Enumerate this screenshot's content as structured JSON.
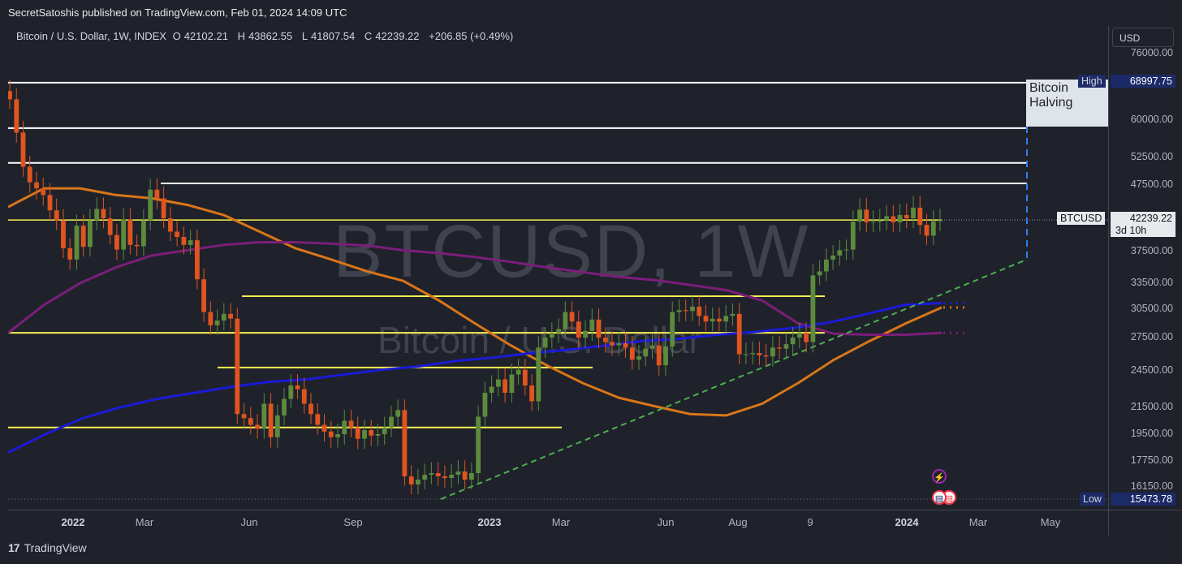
{
  "publisher_line": "SecretSatoshis published on TradingView.com, Feb 01, 2024 14:09 UTC",
  "legend": {
    "symbol": "Bitcoin / U.S. Dollar, 1W, INDEX",
    "o_label": "O",
    "o": "42102.21",
    "h_label": "H",
    "h": "43862.55",
    "l_label": "L",
    "l": "41807.54",
    "c_label": "C",
    "c": "42239.22",
    "change": "+206.85 (+0.49%)"
  },
  "currency_button": "USD",
  "watermark": {
    "ticker": "BTCUSD, 1W",
    "name": "Bitcoin / U.S. Dollar"
  },
  "annotation": {
    "halving": "Bitcoin Halving"
  },
  "price_tags": {
    "high_label": "High",
    "high_value": "68997.75",
    "last_symbol": "BTCUSD",
    "last_value": "42239.22",
    "countdown": "3d 10h",
    "low_label": "Low",
    "low_value": "15473.78"
  },
  "footer": {
    "brand": "TradingView",
    "logo": "17"
  },
  "colors": {
    "background": "#1f222b",
    "up": "#5d8a3c",
    "down": "#e0541f",
    "ma_orange": "#d9761a",
    "ma_purple": "#7b1e7a",
    "ma_blue": "#1a1ad6",
    "trend_green": "#4caf50",
    "level_yellow": "#f7f052",
    "level_white": "#ffffff",
    "halving_line": "#2f7ff0"
  },
  "chart_data": {
    "type": "candlestick",
    "timeframe": "1W",
    "y_axis_ticks": [
      "76000.00",
      "60000.00",
      "52500.00",
      "47500.00",
      "37500.00",
      "33500.00",
      "30500.00",
      "27500.00",
      "24500.00",
      "21500.00",
      "19500.00",
      "17750.00",
      "16150.00"
    ],
    "x_axis_ticks": [
      {
        "label": "2022",
        "bold": true
      },
      {
        "label": "Mar",
        "bold": false
      },
      {
        "label": "Jun",
        "bold": false
      },
      {
        "label": "Sep",
        "bold": false
      },
      {
        "label": "2023",
        "bold": true
      },
      {
        "label": "Mar",
        "bold": false
      },
      {
        "label": "Jun",
        "bold": false
      },
      {
        "label": "Aug",
        "bold": false
      },
      {
        "label": "9",
        "bold": false
      },
      {
        "label": "2024",
        "bold": true
      },
      {
        "label": "Mar",
        "bold": false
      },
      {
        "label": "May",
        "bold": false
      }
    ],
    "closes": [
      65000,
      57500,
      50800,
      48000,
      47000,
      46000,
      43700,
      42200,
      38000,
      36500,
      41400,
      38200,
      42200,
      43900,
      42500,
      40000,
      37800,
      42300,
      38500,
      38300,
      42200,
      46800,
      45500,
      42500,
      40500,
      39700,
      38500,
      39200,
      34000,
      30200,
      28800,
      29300,
      30000,
      29500,
      21000,
      20700,
      20200,
      19900,
      21800,
      19300,
      20900,
      22200,
      23300,
      23000,
      21800,
      21000,
      20200,
      19700,
      19300,
      19500,
      20500,
      20000,
      19200,
      19800,
      19400,
      19500,
      20000,
      20800,
      21300,
      16800,
      16300,
      16600,
      16900,
      17000,
      16800,
      16700,
      16900,
      17100,
      16600,
      17000,
      20800,
      22700,
      23200,
      23800,
      22700,
      24200,
      24600,
      23300,
      22000,
      26600,
      27500,
      28000,
      28400,
      30200,
      29200,
      27500,
      28200,
      29400,
      27500,
      27100,
      26800,
      27000,
      26600,
      25500,
      25800,
      26500,
      26800,
      25000,
      26700,
      30200,
      30400,
      30300,
      30800,
      29800,
      29200,
      29500,
      29200,
      29800,
      30000,
      26000,
      26000,
      26100,
      25900,
      25800,
      26600,
      26500,
      26900,
      27500,
      28000,
      27100,
      34500,
      35000,
      36500,
      37000,
      37700,
      37800,
      42000,
      43800,
      41900,
      42000,
      42200,
      42800,
      41900,
      43000,
      42500,
      44100,
      41500,
      39900,
      42039,
      42239
    ],
    "moving_averages": [
      {
        "color_key": "ma_orange",
        "values": [
          44200,
          47000,
          47000,
          46000,
          45500,
          44500,
          43000,
          40500,
          38000,
          36500,
          35000,
          33800,
          31500,
          29000,
          26800,
          25000,
          23500,
          22300,
          21600,
          21000,
          20900,
          21800,
          23500,
          25500,
          27200,
          29000,
          30700
        ]
      },
      {
        "color_key": "ma_purple",
        "values": [
          28000,
          31000,
          33500,
          35500,
          37000,
          37700,
          38500,
          38900,
          38900,
          38700,
          38400,
          37700,
          37300,
          36800,
          36200,
          35500,
          34900,
          34300,
          33900,
          33300,
          32700,
          31500,
          29000,
          27900,
          27800,
          27800,
          28000
        ]
      },
      {
        "color_key": "ma_blue",
        "values": [
          18300,
          19500,
          20700,
          21500,
          22200,
          22700,
          23200,
          23600,
          23800,
          24200,
          24600,
          24900,
          25400,
          25700,
          26100,
          26400,
          26800,
          27200,
          27400,
          27800,
          28100,
          28500,
          29100,
          30000,
          31000,
          31200
        ]
      }
    ],
    "trendline": {
      "from_value": 15473.78,
      "to_value": 36500
    },
    "horizontal_levels": {
      "white": [
        68997.75,
        58400,
        51500,
        47800
      ],
      "yellow": [
        42239.22,
        32000,
        28000,
        24800,
        20000
      ],
      "high": 68997.75,
      "low": 15473.78
    },
    "xlabel": "",
    "ylabel": ""
  }
}
